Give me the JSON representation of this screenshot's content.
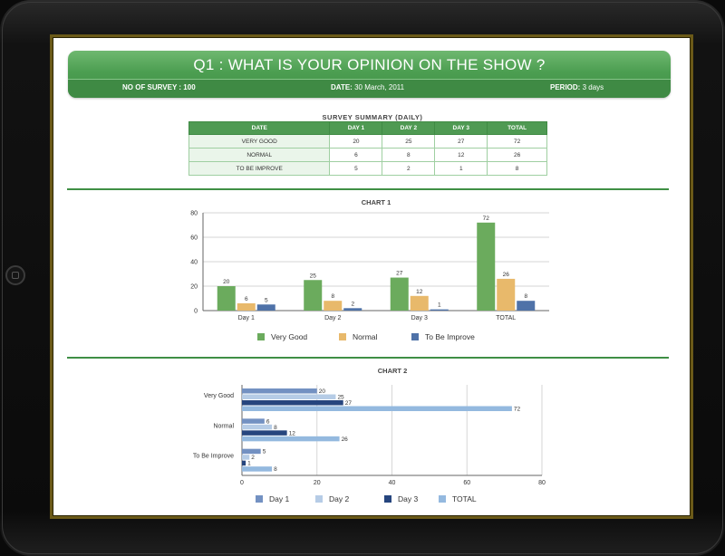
{
  "header": {
    "title": "Q1 : WHAT IS YOUR OPINION ON THE SHOW ?",
    "survey_label": "NO OF SURVEY :",
    "survey_value": "100",
    "date_label": "DATE:",
    "date_value": "30 March, 2011",
    "period_label": "PERIOD:",
    "period_value": "3 days"
  },
  "summary": {
    "title": "SURVEY SUMMARY (DAILY)",
    "headers": [
      "DATE",
      "DAY 1",
      "DAY 2",
      "DAY 3",
      "TOTAL"
    ],
    "rows": [
      [
        "VERY GOOD",
        "20",
        "25",
        "27",
        "72"
      ],
      [
        "NORMAL",
        "6",
        "8",
        "12",
        "26"
      ],
      [
        "TO BE IMPROVE",
        "5",
        "2",
        "1",
        "8"
      ]
    ]
  },
  "colors": {
    "brand_green": "#4c9e51",
    "very_good": "#6bab5d",
    "normal": "#e8b96b",
    "to_be_improve": "#4f72a8",
    "day1": "#7391c2",
    "day2": "#b6cce6",
    "day3": "#26457e",
    "total": "#94b9df"
  },
  "chart_data": [
    {
      "type": "bar",
      "title": "CHART 1",
      "categories": [
        "Day 1",
        "Day 2",
        "Day 3",
        "TOTAL"
      ],
      "series": [
        {
          "name": "Very Good",
          "values": [
            20,
            25,
            27,
            72
          ]
        },
        {
          "name": "Normal",
          "values": [
            6,
            8,
            12,
            26
          ]
        },
        {
          "name": "To Be Improve",
          "values": [
            5,
            2,
            1,
            8
          ]
        }
      ],
      "yticks": [
        0,
        20,
        40,
        60,
        80
      ],
      "ylim": [
        0,
        80
      ],
      "grid": true,
      "legend": "bottom"
    },
    {
      "type": "bar",
      "orientation": "horizontal",
      "title": "CHART 2",
      "categories": [
        "Very Good",
        "Normal",
        "To Be Improve"
      ],
      "series": [
        {
          "name": "Day 1",
          "values": [
            20,
            6,
            5
          ]
        },
        {
          "name": "Day 2",
          "values": [
            25,
            8,
            2
          ]
        },
        {
          "name": "Day 3",
          "values": [
            27,
            12,
            1
          ]
        },
        {
          "name": "TOTAL",
          "values": [
            72,
            26,
            8
          ]
        }
      ],
      "xticks": [
        0,
        20,
        40,
        60,
        80
      ],
      "xlim": [
        0,
        80
      ],
      "grid": true,
      "legend": "bottom"
    }
  ]
}
